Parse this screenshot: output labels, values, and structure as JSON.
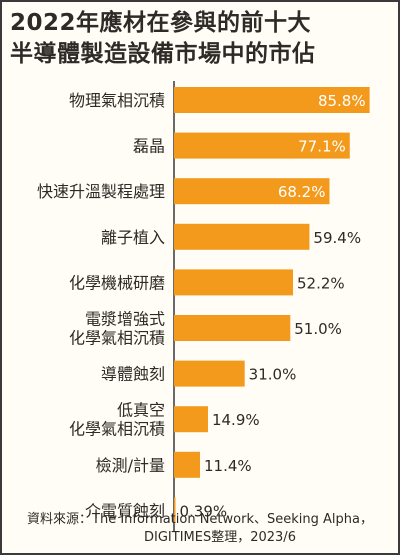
{
  "chart_data": {
    "type": "bar",
    "orientation": "horizontal",
    "title": "2022年應材在參與的前十大半導體製造設備市場中的市佔",
    "title_lines": [
      "2022年應材在參與的前十大",
      "半導體製造設備市場中的市佔"
    ],
    "categories": [
      [
        "物理氣相沉積"
      ],
      [
        "磊晶"
      ],
      [
        "快速升溫製程處理"
      ],
      [
        "離子植入"
      ],
      [
        "化學機械研磨"
      ],
      [
        "電漿增強式",
        "化學氣相沉積"
      ],
      [
        "導體蝕刻"
      ],
      [
        "低真空",
        "化學氣相沉積"
      ],
      [
        "檢測/計量"
      ],
      [
        "介電質蝕刻"
      ]
    ],
    "values": [
      85.8,
      77.1,
      68.2,
      59.4,
      52.2,
      51.0,
      31.0,
      14.9,
      11.4,
      0.39
    ],
    "value_labels": [
      "85.8%",
      "77.1%",
      "68.2%",
      "59.4%",
      "52.2%",
      "51.0%",
      "31.0%",
      "14.9%",
      "11.4%",
      "0.39%"
    ],
    "label_inside_bar": [
      true,
      true,
      true,
      false,
      false,
      false,
      false,
      false,
      false,
      false
    ],
    "bar_color": "#f39a1c",
    "inside_label_color": "#ffffff",
    "outside_label_color": "#2e2a27",
    "xlim": [
      0,
      100
    ],
    "grid": false,
    "legend": "none"
  },
  "source": {
    "line1": "資料來源：The Information Network、Seeking Alpha，",
    "line2": "DIGITIMES整理，2023/6"
  }
}
